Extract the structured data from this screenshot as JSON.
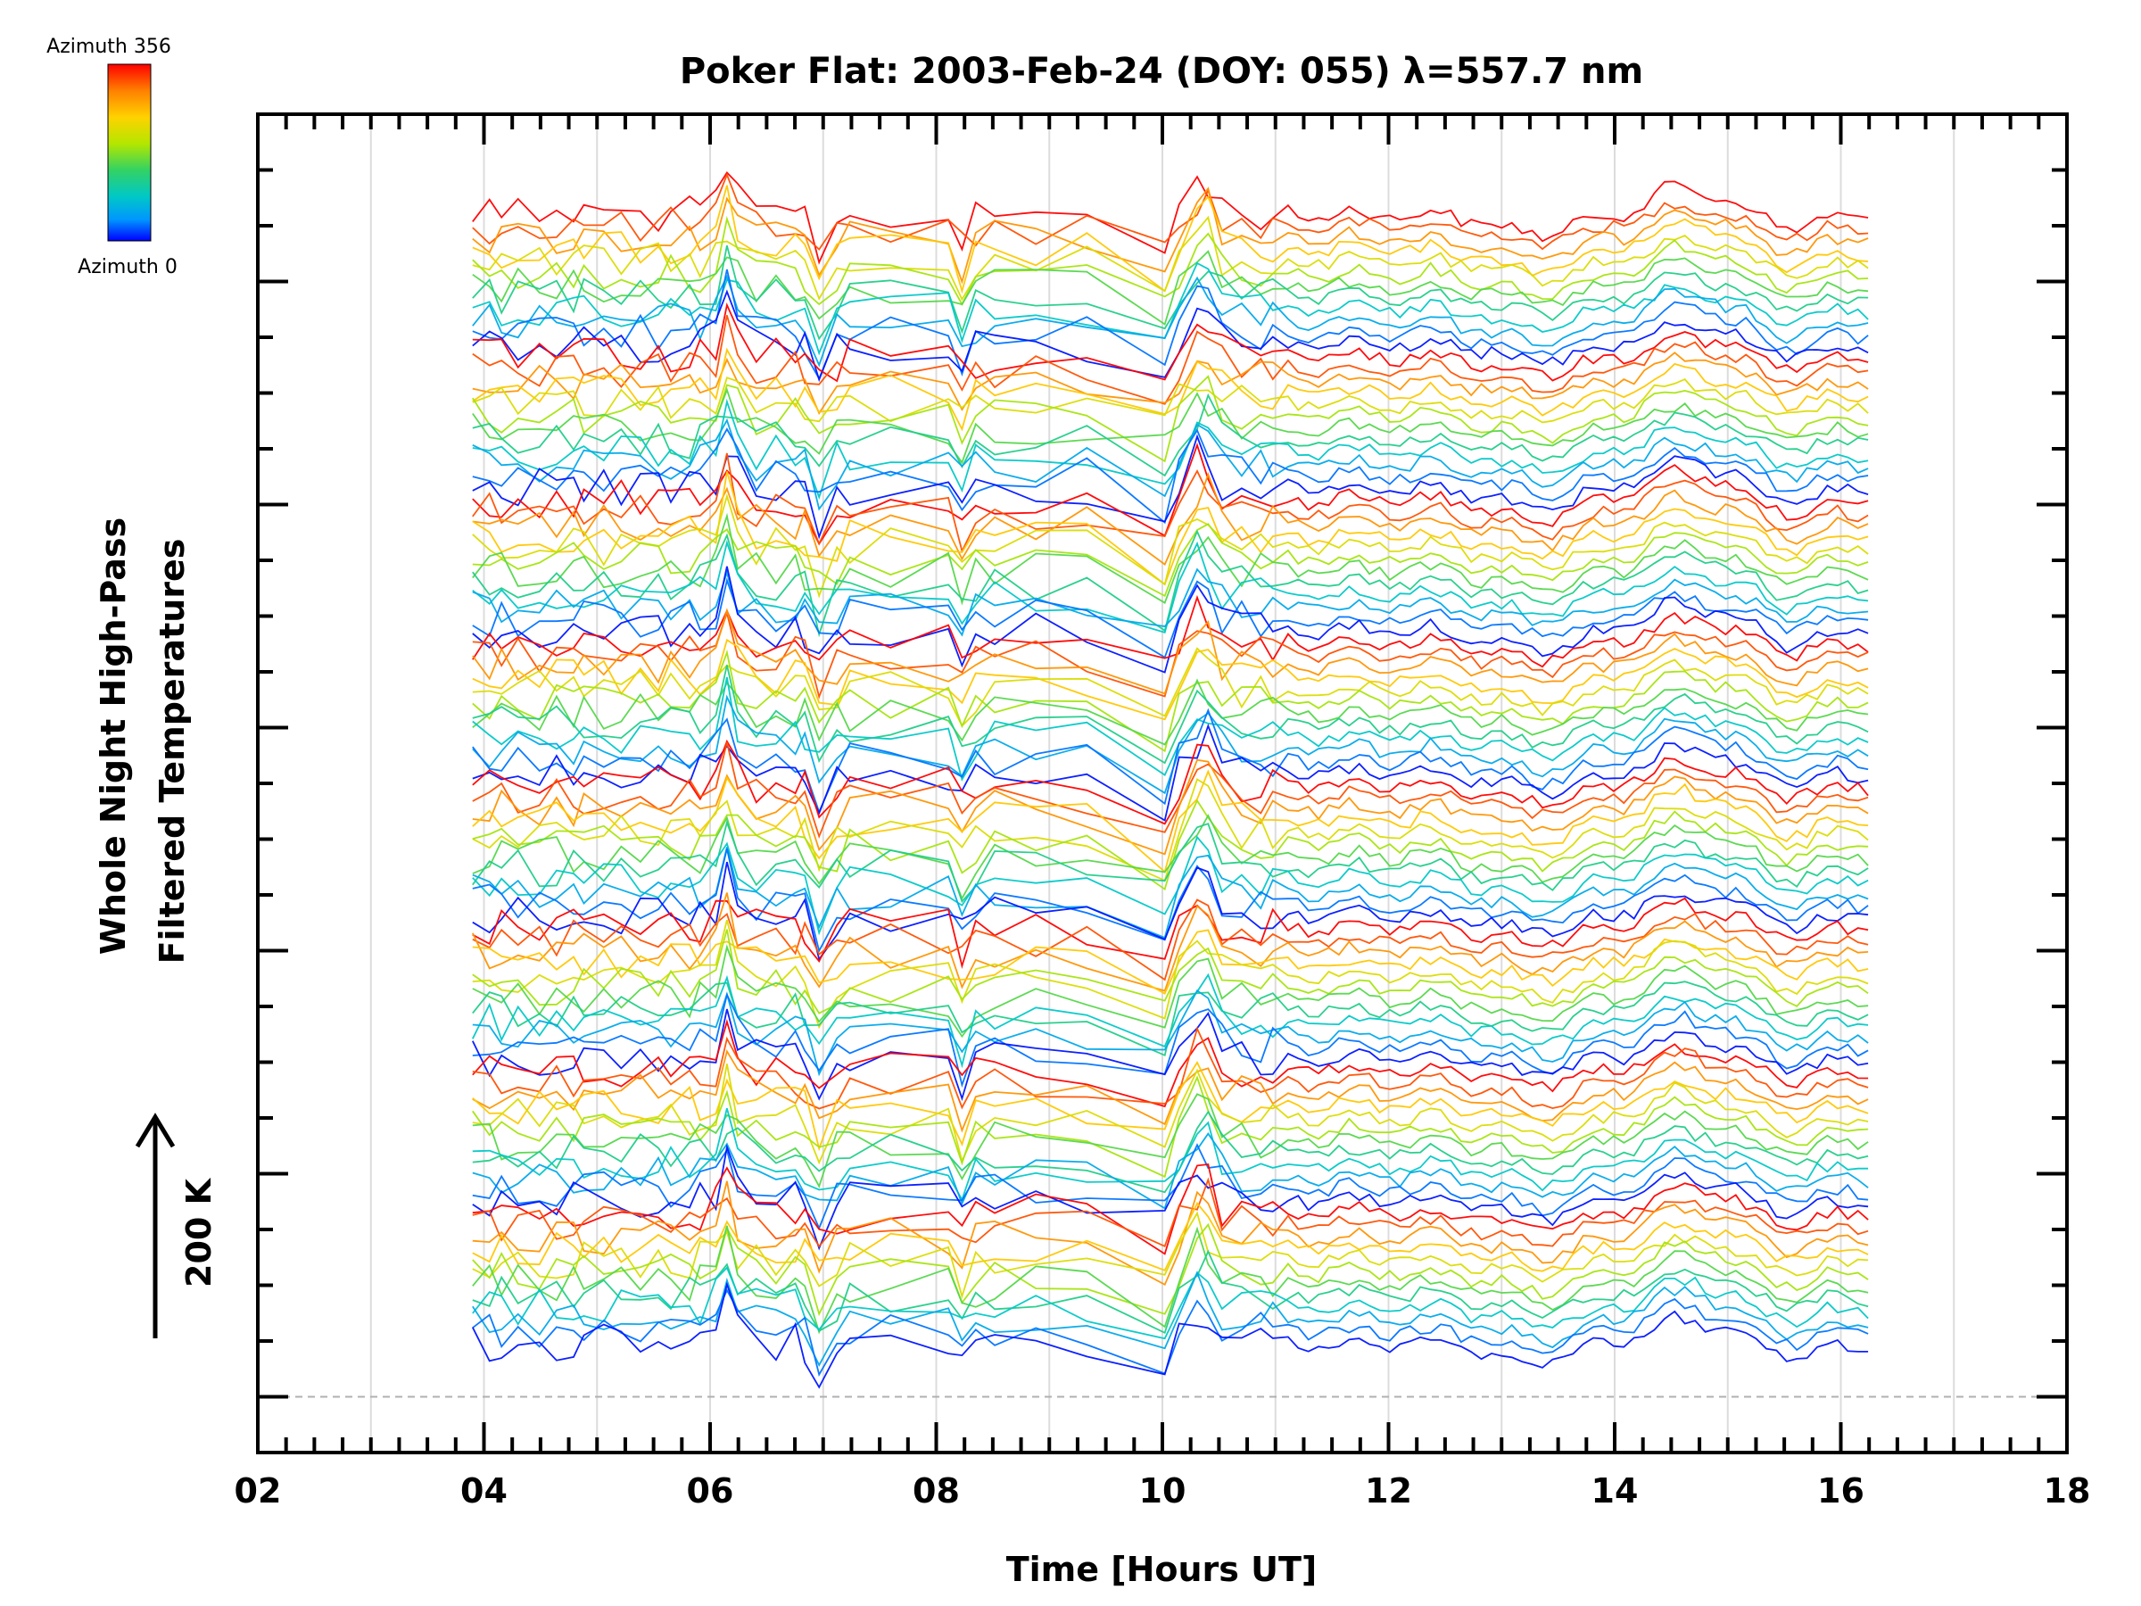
{
  "chart_data": {
    "type": "line",
    "title": "Poker Flat: 2003-Feb-24 (DOY: 055) λ=557.7 nm",
    "xlabel": "Time [Hours UT]",
    "ylabel_line1": "Whole Night High-Pass",
    "ylabel_line2": "Filtered Temperatures",
    "scale_label": "200 K",
    "xlim": [
      2,
      18
    ],
    "x_ticks": [
      "02",
      "04",
      "06",
      "08",
      "10",
      "12",
      "14",
      "16",
      "18"
    ],
    "y_major_tick_count": 6,
    "grid": "vertical",
    "colorbar": {
      "top_label": "Azimuth 356",
      "bottom_label": "Azimuth 0",
      "colors": [
        "#ff0000",
        "#ff8000",
        "#ffd200",
        "#b4e600",
        "#32d264",
        "#00c8c8",
        "#0096ff",
        "#0000ff"
      ]
    },
    "data_time_range": [
      3.9,
      16.25
    ],
    "trace_count": 96,
    "azimuth_count_per_group": 12,
    "baseline_dashed": true
  }
}
